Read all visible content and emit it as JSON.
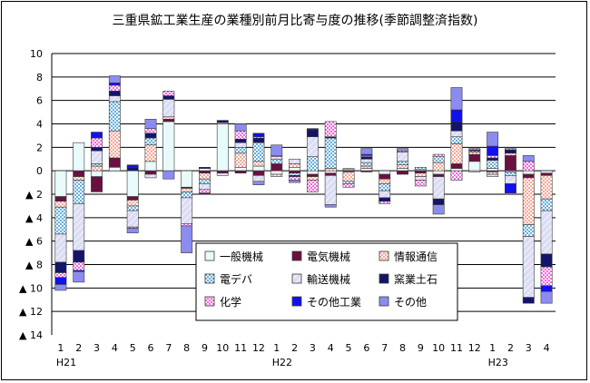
{
  "chart_data": {
    "type": "bar",
    "stacked": true,
    "title": "三重県鉱工業生産の業種別前月比寄与度の推移(季節調整済指数)",
    "ylim": [
      -14,
      10
    ],
    "yticks": [
      10,
      8,
      6,
      4,
      2,
      0,
      -2,
      -4,
      -6,
      -8,
      -10,
      -12,
      -14
    ],
    "ytick_labels": [
      "10",
      "8",
      "6",
      "4",
      "2",
      "0",
      "▲ 2",
      "▲ 4",
      "▲ 6",
      "▲ 8",
      "▲ 10",
      "▲ 12",
      "▲ 14"
    ],
    "grid": "horizontal",
    "categories": [
      "1",
      "2",
      "3",
      "4",
      "5",
      "6",
      "7",
      "8",
      "9",
      "10",
      "11",
      "12",
      "1",
      "2",
      "3",
      "4",
      "5",
      "6",
      "7",
      "8",
      "9",
      "10",
      "11",
      "12",
      "1",
      "2",
      "3",
      "4"
    ],
    "year_labels": [
      {
        "label": "H21",
        "index": 0
      },
      {
        "label": "H22",
        "index": 12
      },
      {
        "label": "H23",
        "index": 24
      }
    ],
    "legend": {
      "position": "inside-bottom-right",
      "columns": 3
    },
    "series": [
      {
        "name": "一般機械",
        "color": "#e8fafa",
        "pattern": "plain",
        "values": [
          -2.2,
          2.4,
          -0.5,
          0.3,
          -2.2,
          0.8,
          4.2,
          -1.4,
          0.2,
          4.0,
          0.3,
          0.4,
          -0.3,
          0.3,
          -0.3,
          -0.2,
          0.1,
          0.2,
          -0.3,
          0.2,
          0.1,
          -0.3,
          0.2,
          0.8,
          0.2,
          -0.1,
          -0.3,
          -0.2
        ]
      },
      {
        "name": "電気機械",
        "color": "#6a1040",
        "pattern": "solid",
        "values": [
          -0.4,
          -0.5,
          -1.3,
          0.8,
          -0.3,
          -0.3,
          0.2,
          -0.1,
          -0.2,
          -0.2,
          -0.2,
          -0.4,
          0.6,
          -0.2,
          -0.2,
          -0.2,
          -0.1,
          -0.1,
          -0.4,
          -0.3,
          -0.2,
          -0.2,
          0.4,
          0.6,
          -0.1,
          1.3,
          -0.3,
          -0.2
        ]
      },
      {
        "name": "情報通信",
        "color": "#f4a090",
        "pattern": "dots",
        "values": [
          -0.5,
          -0.3,
          0.4,
          2.3,
          -0.5,
          1.4,
          0.2,
          -0.3,
          -0.5,
          0.1,
          1.2,
          0.4,
          -0.2,
          0.3,
          -0.3,
          0.2,
          -0.8,
          0.2,
          -0.4,
          0.3,
          -0.3,
          0.7,
          1.7,
          0.2,
          -0.2,
          0.2,
          -4.0,
          -2.0
        ]
      },
      {
        "name": "電デバ",
        "color": "#5aa8d8",
        "pattern": "dots",
        "values": [
          -2.3,
          -2.0,
          0.2,
          2.5,
          -0.4,
          0.6,
          0.0,
          -0.5,
          -0.4,
          0.0,
          0.5,
          1.6,
          0.4,
          -0.2,
          1.2,
          2.6,
          -0.2,
          0.3,
          -0.6,
          0.3,
          0.2,
          0.5,
          0.6,
          0.1,
          0.7,
          -0.3,
          -1.0,
          -1.0
        ]
      },
      {
        "name": "輸送機械",
        "color": "#dcdcf4",
        "pattern": "hatch",
        "values": [
          -2.4,
          -4.0,
          1.1,
          0.5,
          -1.4,
          -0.3,
          1.5,
          -2.2,
          -0.5,
          -0.2,
          0.4,
          -0.5,
          0.2,
          0.4,
          1.7,
          -2.5,
          0.1,
          0.3,
          -0.6,
          0.8,
          -0.3,
          -1.9,
          0.5,
          -0.1,
          -0.2,
          -0.7,
          -5.2,
          -3.7
        ]
      },
      {
        "name": "窯業土石",
        "color": "#14146a",
        "pattern": "solid",
        "values": [
          -0.9,
          -1.0,
          0.3,
          0.4,
          0.3,
          0.4,
          0.3,
          0.0,
          0.1,
          0.2,
          0.3,
          0.4,
          0.0,
          -0.1,
          0.6,
          0.1,
          0.0,
          0.2,
          -0.3,
          0.0,
          0.0,
          -0.5,
          0.8,
          0.1,
          0.2,
          0.3,
          -0.5,
          -1.1
        ]
      },
      {
        "name": "化学",
        "color": "#f060d8",
        "pattern": "dots",
        "values": [
          -0.4,
          -0.7,
          0.8,
          0.5,
          -0.1,
          0.4,
          0.4,
          -0.2,
          -0.3,
          0.0,
          0.7,
          0.1,
          0.1,
          -0.3,
          -1.0,
          1.3,
          -0.3,
          0.1,
          -0.2,
          0.1,
          -0.5,
          0.2,
          -0.8,
          0.1,
          0.2,
          0.1,
          0.8,
          -1.6
        ]
      },
      {
        "name": "その他工業",
        "color": "#1010f0",
        "pattern": "solid",
        "values": [
          -0.6,
          -0.1,
          0.5,
          0.2,
          0.2,
          0.0,
          0.0,
          0.0,
          -0.1,
          0.0,
          0.0,
          0.3,
          0.0,
          0.0,
          0.1,
          0.0,
          0.0,
          0.1,
          0.0,
          0.0,
          0.0,
          0.0,
          1.0,
          0.0,
          0.8,
          -0.8,
          0.0,
          -0.5
        ]
      },
      {
        "name": "その他",
        "color": "#8c8cf0",
        "pattern": "solid",
        "values": [
          -0.5,
          -0.9,
          0.0,
          0.6,
          -0.4,
          0.8,
          -0.7,
          -2.3,
          0.0,
          0.0,
          0.6,
          -0.3,
          0.9,
          -0.2,
          0.0,
          -0.2,
          0.0,
          0.5,
          0.0,
          0.2,
          0.0,
          -0.8,
          1.9,
          0.0,
          1.2,
          0.0,
          0.5,
          -1.0
        ]
      }
    ]
  }
}
